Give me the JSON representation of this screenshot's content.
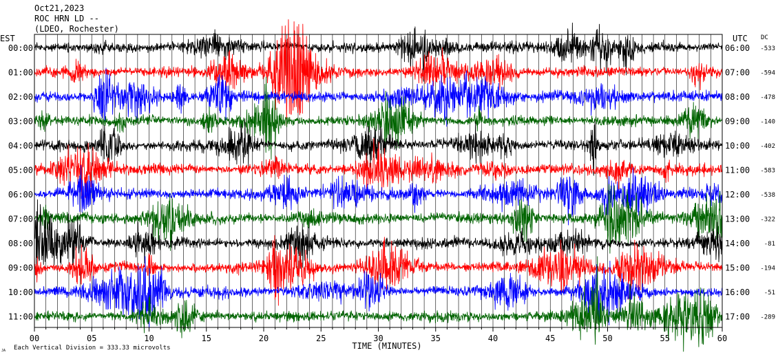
{
  "header": {
    "date": "Oct21,2023",
    "station": "ROC HRN LD --",
    "network": "(LDEO, Rochester)"
  },
  "left_axis_title": "EST",
  "right_axis_title": "UTC",
  "dc_title": "DC",
  "footer": {
    "scale_note": "Each Vertical Division =  333.33 microvolts",
    "corner_mark": "JA"
  },
  "chart_data": {
    "type": "line",
    "xlabel": "TIME (MINUTES)",
    "xlim": [
      0,
      60
    ],
    "x_ticks": [
      "00",
      "05",
      "10",
      "15",
      "20",
      "25",
      "30",
      "35",
      "40",
      "45",
      "50",
      "55",
      "60"
    ],
    "colors": [
      "#000000",
      "#ff0000",
      "#0000ff",
      "#006400"
    ],
    "rows": [
      {
        "est": "00:00",
        "utc": "06:00",
        "dc": "-533"
      },
      {
        "est": "01:00",
        "utc": "07:00",
        "dc": "-594"
      },
      {
        "est": "02:00",
        "utc": "08:00",
        "dc": "-478"
      },
      {
        "est": "03:00",
        "utc": "09:00",
        "dc": "-140"
      },
      {
        "est": "04:00",
        "utc": "10:00",
        "dc": "-402"
      },
      {
        "est": "05:00",
        "utc": "11:00",
        "dc": "-583"
      },
      {
        "est": "06:00",
        "utc": "12:00",
        "dc": "-538"
      },
      {
        "est": "07:00",
        "utc": "13:00",
        "dc": "-322"
      },
      {
        "est": "08:00",
        "utc": "14:00",
        "dc": "-81"
      },
      {
        "est": "09:00",
        "utc": "15:00",
        "dc": "-194"
      },
      {
        "est": "10:00",
        "utc": "16:00",
        "dc": "-51"
      },
      {
        "est": "11:00",
        "utc": "17:00",
        "dc": "-289"
      }
    ]
  }
}
